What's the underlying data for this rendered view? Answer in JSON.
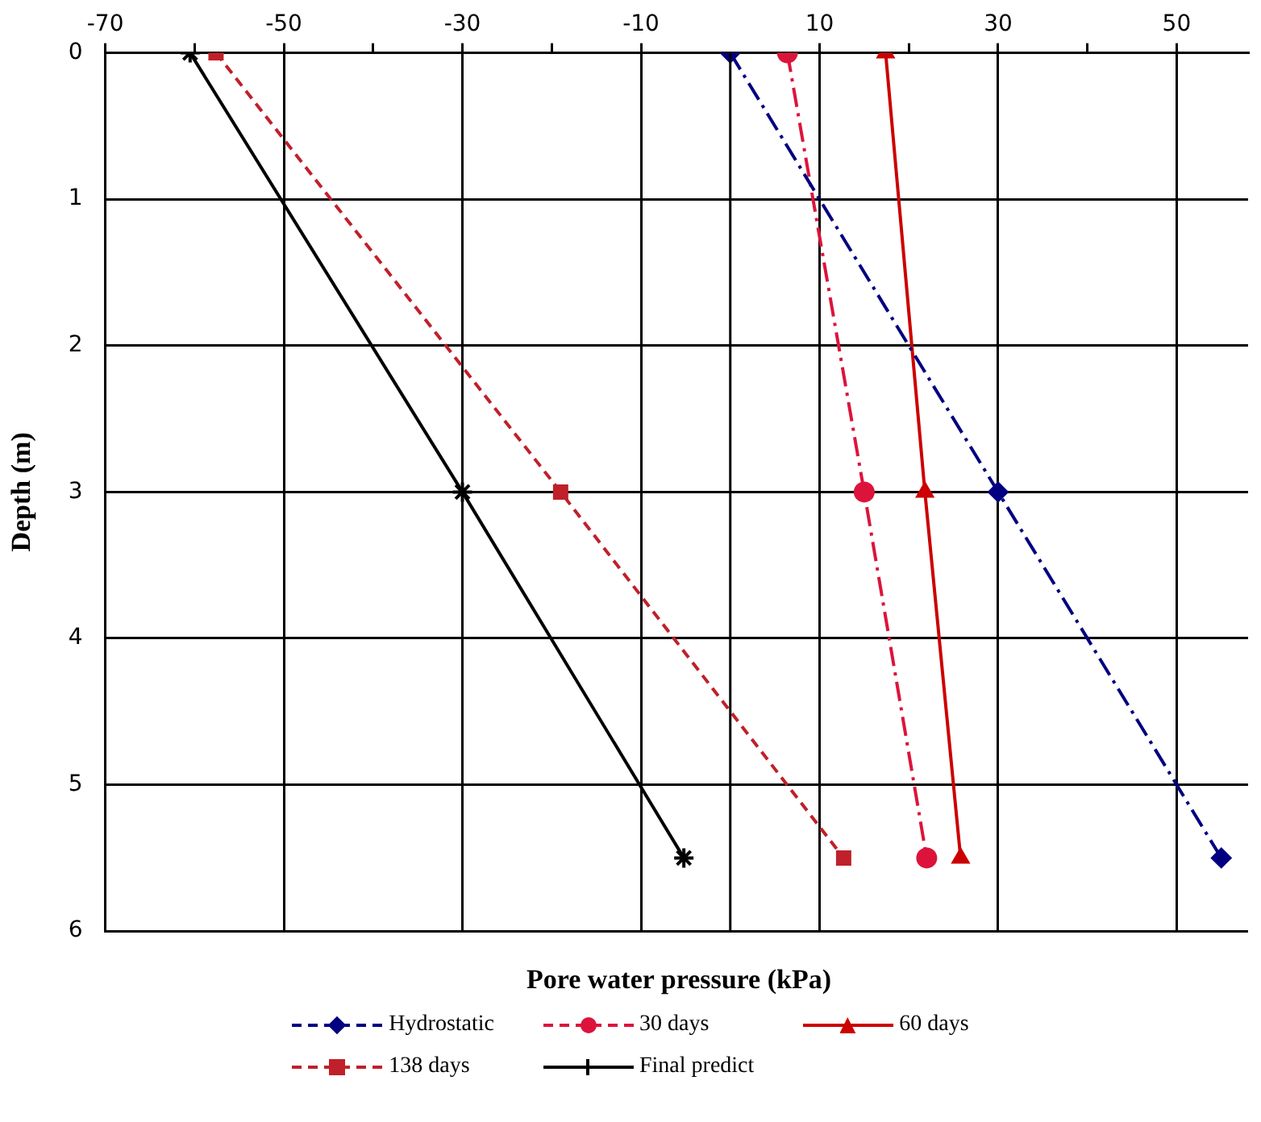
{
  "chart_data": {
    "type": "line",
    "xlabel": "Pore water pressure (kPa)",
    "ylabel": "Depth (m)",
    "xlim": [
      -70,
      58
    ],
    "xticks": [
      -70,
      {
        "value": -60,
        "label": null
      },
      -50,
      {
        "value": -40,
        "label": null
      },
      -30,
      {
        "value": -20,
        "label": null
      },
      -10,
      10,
      {
        "value": 20,
        "label": null
      },
      30,
      {
        "value": 40,
        "label": null
      },
      50
    ],
    "ylim": [
      6,
      0
    ],
    "yticks": [
      0,
      1,
      2,
      3,
      4,
      5,
      6
    ],
    "grid": true,
    "legend": "bottom",
    "ref_lines": [
      {
        "axis": "x",
        "value": 0,
        "color": "#000000"
      }
    ],
    "series": [
      {
        "name": "Hydrostatic",
        "color": "#000080",
        "x": [
          0,
          30,
          55
        ],
        "values": [
          0,
          3,
          5.5
        ],
        "marker": "diamond",
        "line_style": "dashdot"
      },
      {
        "name": "30 days",
        "color": "#dc143c",
        "x": [
          6.4,
          15,
          22
        ],
        "values": [
          0,
          3,
          5.5
        ],
        "marker": "circle",
        "line_style": "dashdot"
      },
      {
        "name": "60 days",
        "color": "#cc0000",
        "x": [
          17.4,
          21.8,
          25.8
        ],
        "values": [
          0,
          3,
          5.5
        ],
        "marker": "triangle",
        "line_style": "solid"
      },
      {
        "name": "138 days",
        "color": "#c0202a",
        "x": [
          -57.6,
          -19,
          12.7
        ],
        "values": [
          0,
          3,
          5.5
        ],
        "marker": "square",
        "line_style": "dashed"
      },
      {
        "name": "Final predict",
        "color": "#000000",
        "x": [
          -60.5,
          -30,
          -5.2
        ],
        "values": [
          0,
          3,
          5.5
        ],
        "marker": "cross",
        "line_style": "solid"
      }
    ]
  }
}
